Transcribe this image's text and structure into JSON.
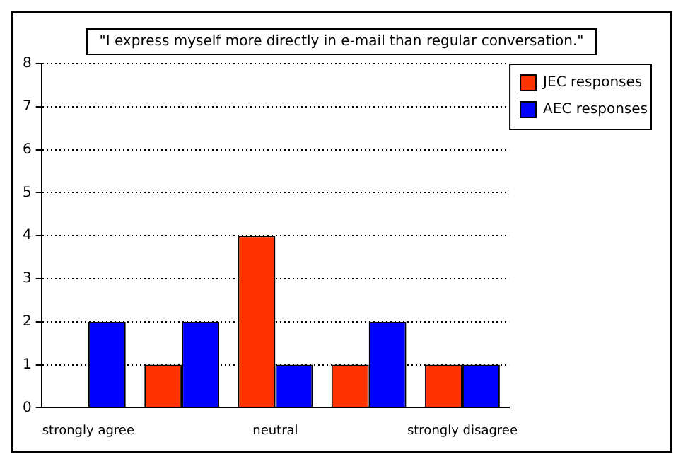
{
  "chart_data": {
    "type": "bar",
    "title": "\"I express myself more directly in e-mail than regular conversation.\"",
    "categories": [
      "strongly agree",
      null,
      "neutral",
      null,
      "strongly disagree"
    ],
    "series": [
      {
        "name": "JEC responses",
        "color": "#ff3300",
        "values": [
          0,
          1,
          4,
          1,
          1
        ]
      },
      {
        "name": "AEC responses",
        "color": "#0000ff",
        "values": [
          2,
          2,
          1,
          2,
          1
        ]
      }
    ],
    "ylim": [
      0,
      8
    ],
    "yticks": [
      0,
      1,
      2,
      3,
      4,
      5,
      6,
      7,
      8
    ],
    "grid": "y",
    "legend": "right"
  }
}
